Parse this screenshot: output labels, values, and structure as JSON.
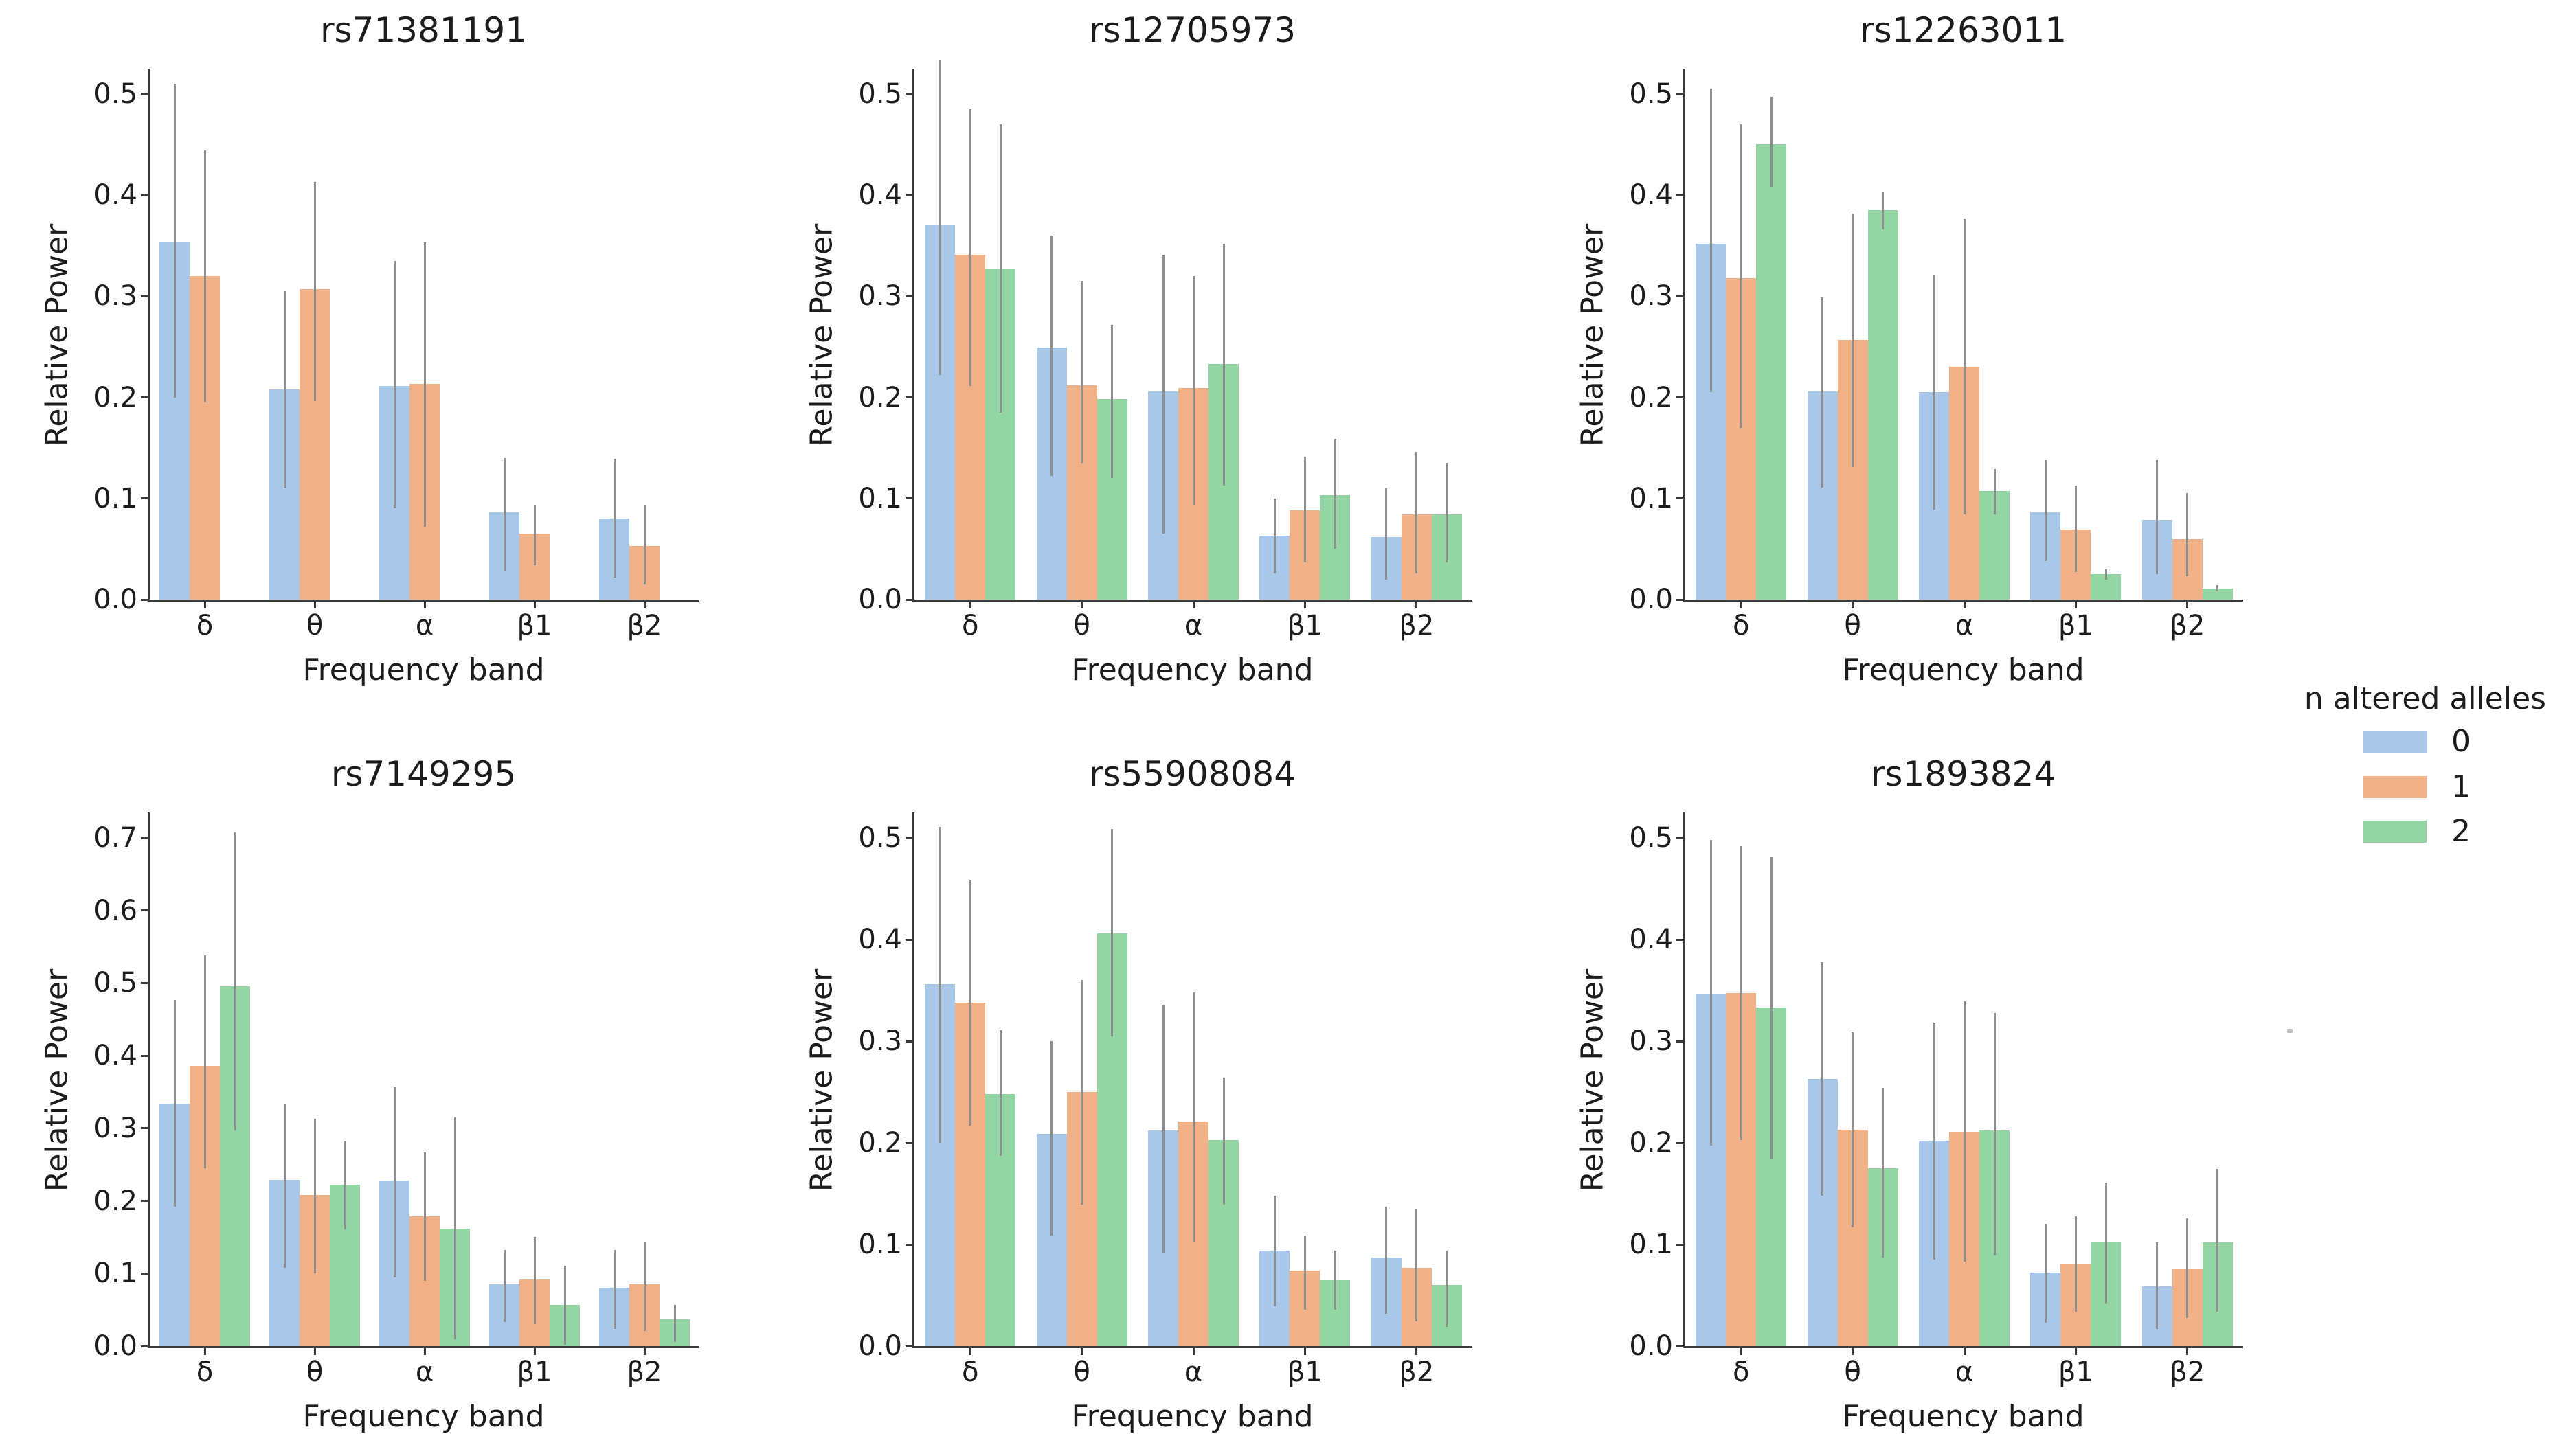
{
  "palette": {
    "order": [
      "0",
      "1",
      "2"
    ],
    "colors": {
      "0": "#a9c7e8",
      "1": "#f0b088",
      "2": "#94d5a4"
    },
    "error_bar": "#8e8e8e",
    "axis": "#3a3a3a",
    "text": "#1c1c1c",
    "background": "#ffffff"
  },
  "legend": {
    "title": "n altered alleles",
    "items": [
      {
        "label": "0",
        "color_key": "0"
      },
      {
        "label": "1",
        "color_key": "1"
      },
      {
        "label": "2",
        "color_key": "2"
      }
    ]
  },
  "chart_data": [
    {
      "type": "bar",
      "title": "rs71381191",
      "xlabel": "Frequency band",
      "ylabel": "Relative Power",
      "categories": [
        "δ",
        "θ",
        "α",
        "β1",
        "β2"
      ],
      "ylim": [
        0,
        0.525
      ],
      "yticks": [
        "0.0",
        "0.1",
        "0.2",
        "0.3",
        "0.4",
        "0.5"
      ],
      "grid": false,
      "series": [
        {
          "name": "0",
          "values": [
            0.354,
            0.208,
            0.211,
            0.086,
            0.08
          ],
          "error_low": [
            0.2,
            0.11,
            0.09,
            0.028,
            0.022
          ],
          "error_high": [
            0.51,
            0.305,
            0.335,
            0.14,
            0.139
          ]
        },
        {
          "name": "1",
          "values": [
            0.32,
            0.307,
            0.213,
            0.065,
            0.053
          ],
          "error_low": [
            0.195,
            0.196,
            0.072,
            0.034,
            0.015
          ],
          "error_high": [
            0.444,
            0.413,
            0.353,
            0.093,
            0.093
          ]
        }
      ]
    },
    {
      "type": "bar",
      "title": "rs12705973",
      "xlabel": "Frequency band",
      "ylabel": "Relative Power",
      "categories": [
        "δ",
        "θ",
        "α",
        "β1",
        "β2"
      ],
      "ylim": [
        0,
        0.525
      ],
      "yticks": [
        "0.0",
        "0.1",
        "0.2",
        "0.3",
        "0.4",
        "0.5"
      ],
      "grid": false,
      "series": [
        {
          "name": "0",
          "values": [
            0.37,
            0.249,
            0.206,
            0.063,
            0.062
          ],
          "error_low": [
            0.222,
            0.122,
            0.065,
            0.026,
            0.02
          ],
          "error_high": [
            0.533,
            0.36,
            0.341,
            0.1,
            0.111
          ]
        },
        {
          "name": "1",
          "values": [
            0.341,
            0.212,
            0.209,
            0.088,
            0.084
          ],
          "error_low": [
            0.211,
            0.135,
            0.093,
            0.037,
            0.026
          ],
          "error_high": [
            0.485,
            0.315,
            0.32,
            0.141,
            0.146
          ]
        },
        {
          "name": "2",
          "values": [
            0.327,
            0.198,
            0.233,
            0.103,
            0.084
          ],
          "error_low": [
            0.185,
            0.12,
            0.113,
            0.05,
            0.037
          ],
          "error_high": [
            0.47,
            0.272,
            0.352,
            0.159,
            0.135
          ]
        }
      ]
    },
    {
      "type": "bar",
      "title": "rs12263011",
      "xlabel": "Frequency band",
      "ylabel": "Relative Power",
      "categories": [
        "δ",
        "θ",
        "α",
        "β1",
        "β2"
      ],
      "ylim": [
        0,
        0.525
      ],
      "yticks": [
        "0.0",
        "0.1",
        "0.2",
        "0.3",
        "0.4",
        "0.5"
      ],
      "grid": false,
      "series": [
        {
          "name": "0",
          "values": [
            0.352,
            0.206,
            0.205,
            0.086,
            0.079
          ],
          "error_low": [
            0.205,
            0.111,
            0.089,
            0.038,
            0.025
          ],
          "error_high": [
            0.505,
            0.299,
            0.321,
            0.138,
            0.138
          ]
        },
        {
          "name": "1",
          "values": [
            0.318,
            0.257,
            0.23,
            0.069,
            0.06
          ],
          "error_low": [
            0.17,
            0.131,
            0.084,
            0.027,
            0.023
          ],
          "error_high": [
            0.47,
            0.382,
            0.376,
            0.113,
            0.105
          ]
        },
        {
          "name": "2",
          "values": [
            0.45,
            0.385,
            0.107,
            0.025,
            0.011
          ],
          "error_low": [
            0.408,
            0.366,
            0.084,
            0.02,
            0.008
          ],
          "error_high": [
            0.497,
            0.403,
            0.129,
            0.03,
            0.014
          ]
        }
      ]
    },
    {
      "type": "bar",
      "title": "rs7149295",
      "xlabel": "Frequency band",
      "ylabel": "Relative Power",
      "categories": [
        "δ",
        "θ",
        "α",
        "β1",
        "β2"
      ],
      "ylim": [
        0,
        0.735
      ],
      "yticks": [
        "0.0",
        "0.1",
        "0.2",
        "0.3",
        "0.4",
        "0.5",
        "0.6",
        "0.7"
      ],
      "grid": false,
      "series": [
        {
          "name": "0",
          "values": [
            0.334,
            0.229,
            0.228,
            0.085,
            0.08
          ],
          "error_low": [
            0.192,
            0.108,
            0.095,
            0.033,
            0.024
          ],
          "error_high": [
            0.477,
            0.333,
            0.357,
            0.132,
            0.132
          ]
        },
        {
          "name": "1",
          "values": [
            0.386,
            0.208,
            0.179,
            0.092,
            0.085
          ],
          "error_low": [
            0.245,
            0.1,
            0.09,
            0.03,
            0.021
          ],
          "error_high": [
            0.538,
            0.313,
            0.267,
            0.15,
            0.144
          ]
        },
        {
          "name": "2",
          "values": [
            0.496,
            0.222,
            0.162,
            0.057,
            0.037
          ],
          "error_low": [
            0.297,
            0.161,
            0.009,
            0.002,
            0.006
          ],
          "error_high": [
            0.708,
            0.282,
            0.315,
            0.111,
            0.057
          ]
        }
      ]
    },
    {
      "type": "bar",
      "title": "rs55908084",
      "xlabel": "Frequency band",
      "ylabel": "Relative Power",
      "categories": [
        "δ",
        "θ",
        "α",
        "β1",
        "β2"
      ],
      "ylim": [
        0,
        0.525
      ],
      "yticks": [
        "0.0",
        "0.1",
        "0.2",
        "0.3",
        "0.4",
        "0.5"
      ],
      "grid": false,
      "series": [
        {
          "name": "0",
          "values": [
            0.356,
            0.209,
            0.212,
            0.094,
            0.087
          ],
          "error_low": [
            0.2,
            0.109,
            0.092,
            0.039,
            0.032
          ],
          "error_high": [
            0.511,
            0.3,
            0.336,
            0.148,
            0.137
          ]
        },
        {
          "name": "1",
          "values": [
            0.338,
            0.25,
            0.221,
            0.074,
            0.077
          ],
          "error_low": [
            0.217,
            0.139,
            0.103,
            0.036,
            0.024
          ],
          "error_high": [
            0.459,
            0.36,
            0.348,
            0.109,
            0.135
          ]
        },
        {
          "name": "2",
          "values": [
            0.248,
            0.406,
            0.203,
            0.065,
            0.06
          ],
          "error_low": [
            0.187,
            0.305,
            0.139,
            0.036,
            0.019
          ],
          "error_high": [
            0.311,
            0.509,
            0.264,
            0.094,
            0.094
          ]
        }
      ]
    },
    {
      "type": "bar",
      "title": "rs1893824",
      "xlabel": "Frequency band",
      "ylabel": "Relative Power",
      "categories": [
        "δ",
        "θ",
        "α",
        "β1",
        "β2"
      ],
      "ylim": [
        0,
        0.525
      ],
      "yticks": [
        "0.0",
        "0.1",
        "0.2",
        "0.3",
        "0.4",
        "0.5"
      ],
      "grid": false,
      "series": [
        {
          "name": "0",
          "values": [
            0.346,
            0.263,
            0.202,
            0.072,
            0.059
          ],
          "error_low": [
            0.197,
            0.148,
            0.085,
            0.023,
            0.017
          ],
          "error_high": [
            0.498,
            0.378,
            0.318,
            0.12,
            0.102
          ]
        },
        {
          "name": "1",
          "values": [
            0.347,
            0.213,
            0.211,
            0.081,
            0.076
          ],
          "error_low": [
            0.203,
            0.117,
            0.083,
            0.034,
            0.028
          ],
          "error_high": [
            0.492,
            0.309,
            0.339,
            0.128,
            0.126
          ]
        },
        {
          "name": "2",
          "values": [
            0.333,
            0.175,
            0.212,
            0.103,
            0.102
          ],
          "error_low": [
            0.184,
            0.087,
            0.089,
            0.042,
            0.034
          ],
          "error_high": [
            0.481,
            0.254,
            0.328,
            0.161,
            0.174
          ]
        }
      ]
    }
  ]
}
